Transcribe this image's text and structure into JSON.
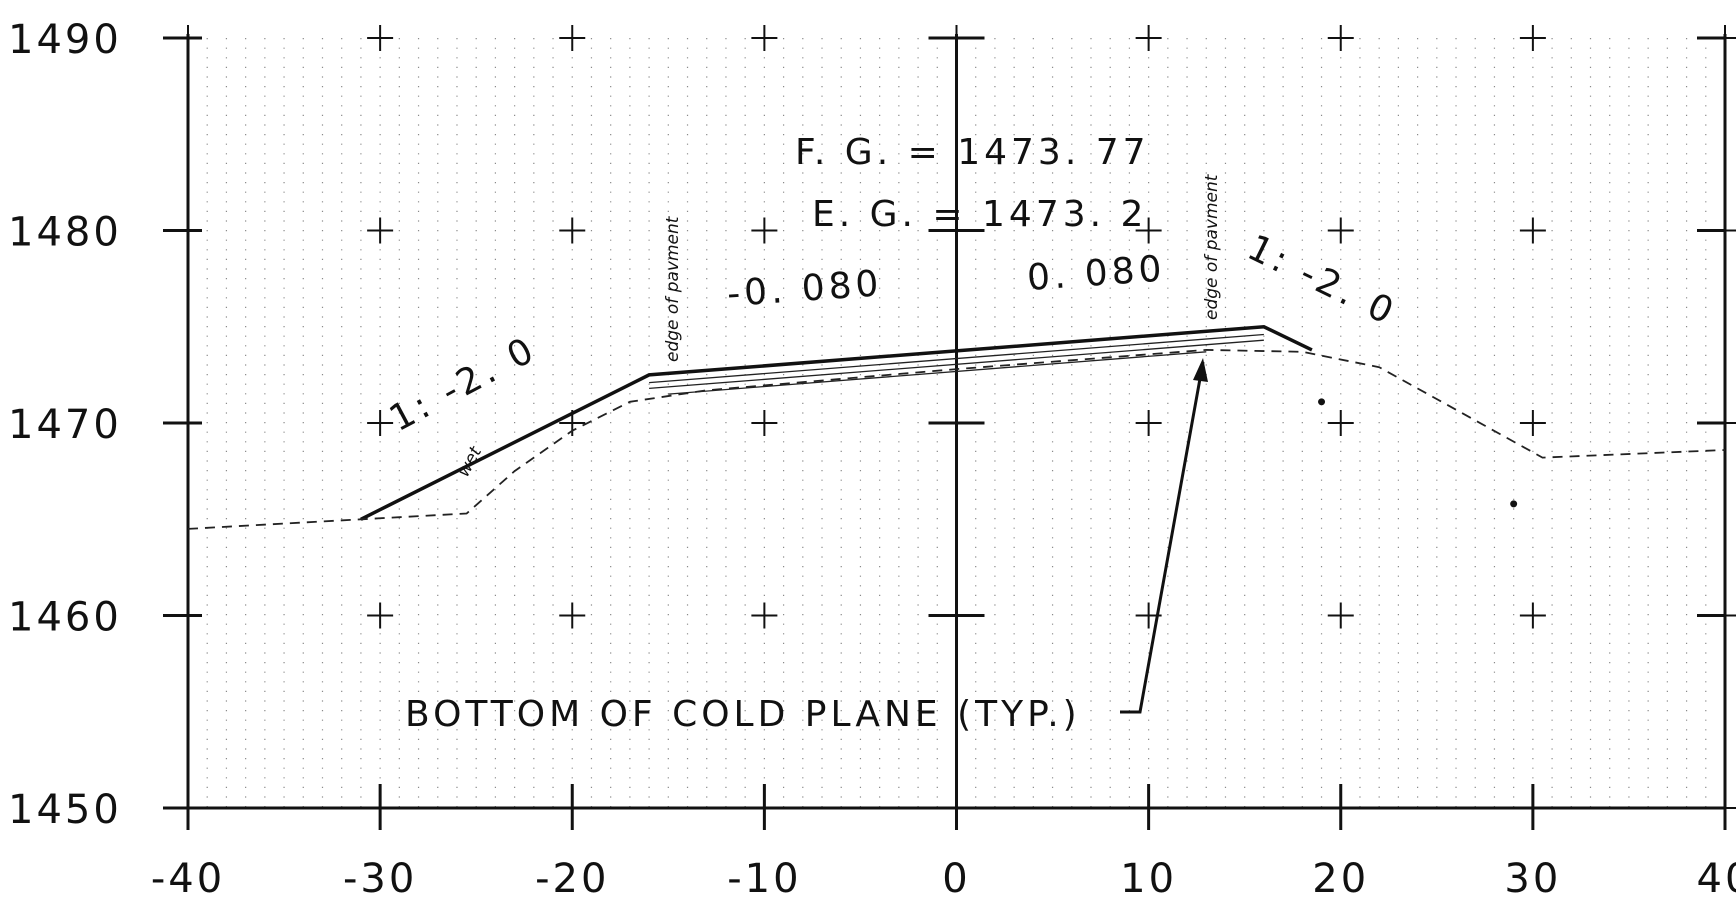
{
  "chart_data": {
    "type": "line",
    "xlim": [
      -40,
      40
    ],
    "ylim": [
      1450,
      1490
    ],
    "x_ticks": [
      "-40",
      "-30",
      "-20",
      "-10",
      "0",
      "10",
      "20",
      "30",
      "40"
    ],
    "y_ticks": [
      "1450",
      "1460",
      "1470",
      "1480",
      "1490"
    ],
    "grid": "dotted minor grid every 1 unit, plus marks every 10 units",
    "series": [
      {
        "style": "solid-heavy",
        "x": [
          -31,
          -16,
          16,
          18.5
        ],
        "y": [
          1465,
          1472.5,
          1475,
          1473.8
        ]
      },
      {
        "style": "solid-thin",
        "x": [
          -16,
          16
        ],
        "y": [
          1472.1,
          1474.6
        ]
      },
      {
        "style": "solid-thin",
        "x": [
          -16,
          16
        ],
        "y": [
          1471.8,
          1474.3
        ]
      },
      {
        "style": "solid-thin",
        "x": [
          -15,
          13
        ],
        "y": [
          1471.5,
          1473.7
        ]
      },
      {
        "style": "dashed",
        "x": [
          -40,
          -31,
          -25.5,
          -23,
          -20,
          -17,
          -13,
          0,
          13,
          18,
          22,
          30.5,
          40
        ],
        "y": [
          1464.5,
          1465,
          1465.3,
          1467.5,
          1469.6,
          1471.1,
          1471.7,
          1472.8,
          1473.8,
          1473.7,
          1472.9,
          1468.2,
          1468.6
        ]
      }
    ],
    "points": [
      {
        "x": 19,
        "y": 1471.1
      },
      {
        "x": 29,
        "y": 1465.8
      }
    ]
  },
  "annotations": {
    "fg": "F. G.  =  1473. 77",
    "eg": "E. G.  =  1473. 2",
    "slope_left_cross": "-0. 080",
    "slope_right_cross": "0. 080",
    "side_slope_left": "1: -2. 0",
    "side_slope_right": "1: -2. 0",
    "edge_left": "edge of pavment",
    "edge_right": "edge of pavment",
    "wet": "wet",
    "callout": "BOTTOM  OF  COLD  PLANE  (TYP.)"
  }
}
